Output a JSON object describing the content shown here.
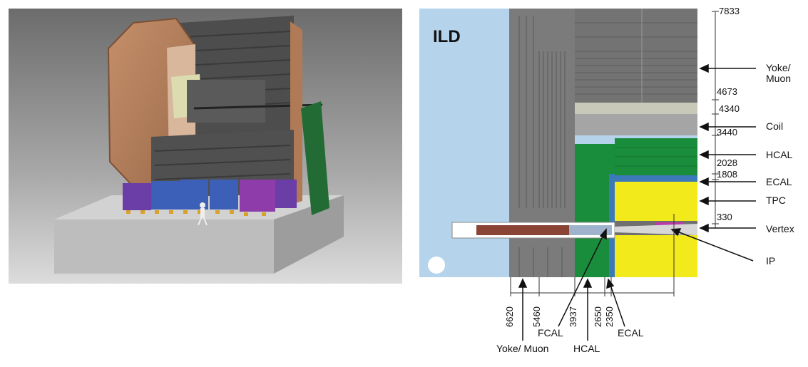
{
  "left_image": {
    "name": "3D rendering of ILD detector"
  },
  "right_diagram": {
    "title": "ILD",
    "right_labels": {
      "yoke_muon": "Yoke/\nMuon",
      "coil": "Coil",
      "hcal": "HCAL",
      "ecal": "ECAL",
      "tpc": "TPC",
      "vertex": "Vertex",
      "ip": "IP"
    },
    "radial_dims": [
      "7833",
      "4673",
      "4340",
      "3440",
      "2028",
      "1808",
      "330"
    ],
    "axial_dims": [
      "6620",
      "5460",
      "3937",
      "2650",
      "2350"
    ],
    "bottom_labels": {
      "fcal": "FCAL",
      "yoke_muon": "Yoke/ Muon",
      "hcal": "HCAL",
      "ecal": "ECAL"
    }
  },
  "colors": {
    "sky": "#b5d4ec",
    "yoke": "#7b7b7b",
    "coil": "#a5a5a5",
    "hcal": "#1a8d3c",
    "ecal": "#3c79b8",
    "tpc": "#f2ea1a",
    "vertex": "#b93aa8"
  }
}
